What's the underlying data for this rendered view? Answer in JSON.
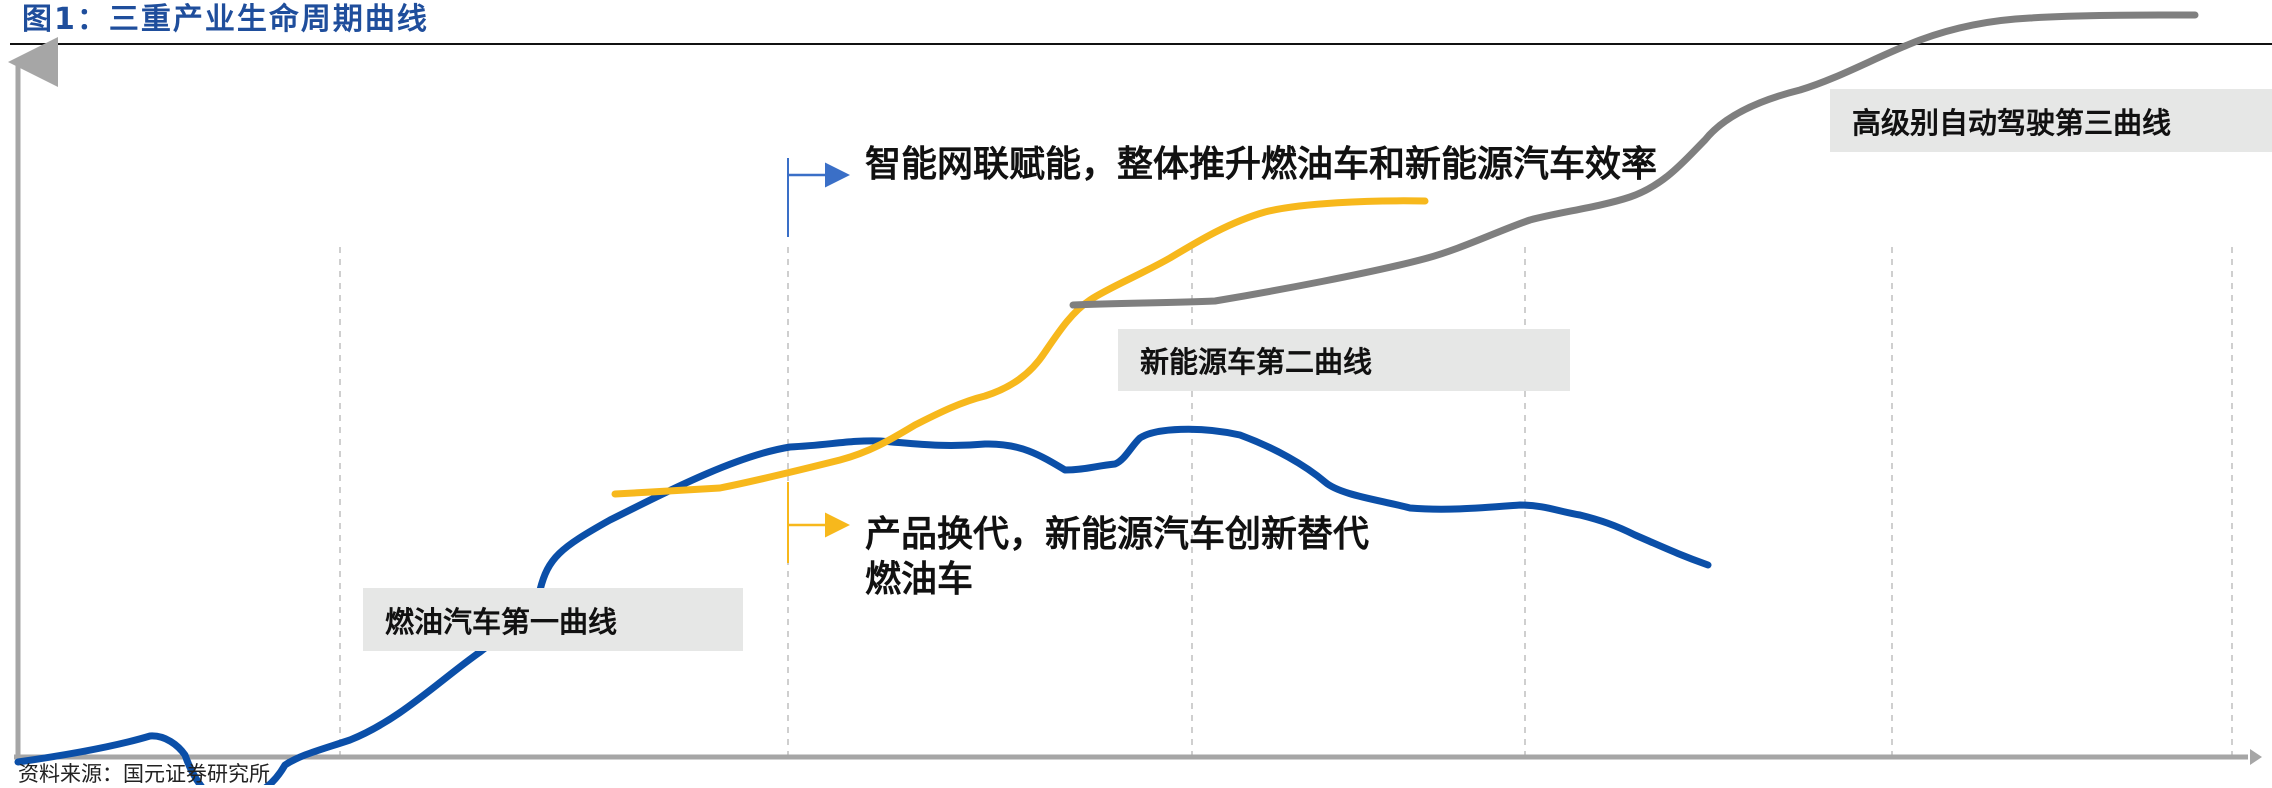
{
  "title": "图1：三重产业生命周期曲线",
  "source": "资料来源：国元证券研究所",
  "colors": {
    "blue": "#0b4fa8",
    "yellow": "#f7b81c",
    "gray": "#808080",
    "arrow": "#3a6fc7",
    "axis": "#a6a6a6",
    "grid": "#bfbfbf",
    "label_bg": "#e6e7e6"
  },
  "chart_data": {
    "type": "line",
    "title": "三重产业生命周期曲线",
    "xlabel": "",
    "ylabel": "",
    "grid": "vertical dashed lines",
    "series": [
      {
        "name": "燃油汽车第一曲线",
        "color": "blue"
      },
      {
        "name": "新能源车第二曲线",
        "color": "yellow"
      },
      {
        "name": "高级别自动驾驶第三曲线",
        "color": "gray"
      }
    ],
    "annotations": [
      {
        "text": "智能网联赋能，整体推升燃油车和新能源汽车效率"
      },
      {
        "lines": [
          "产品换代，新能源汽车创新替代",
          "燃油车"
        ]
      }
    ]
  }
}
